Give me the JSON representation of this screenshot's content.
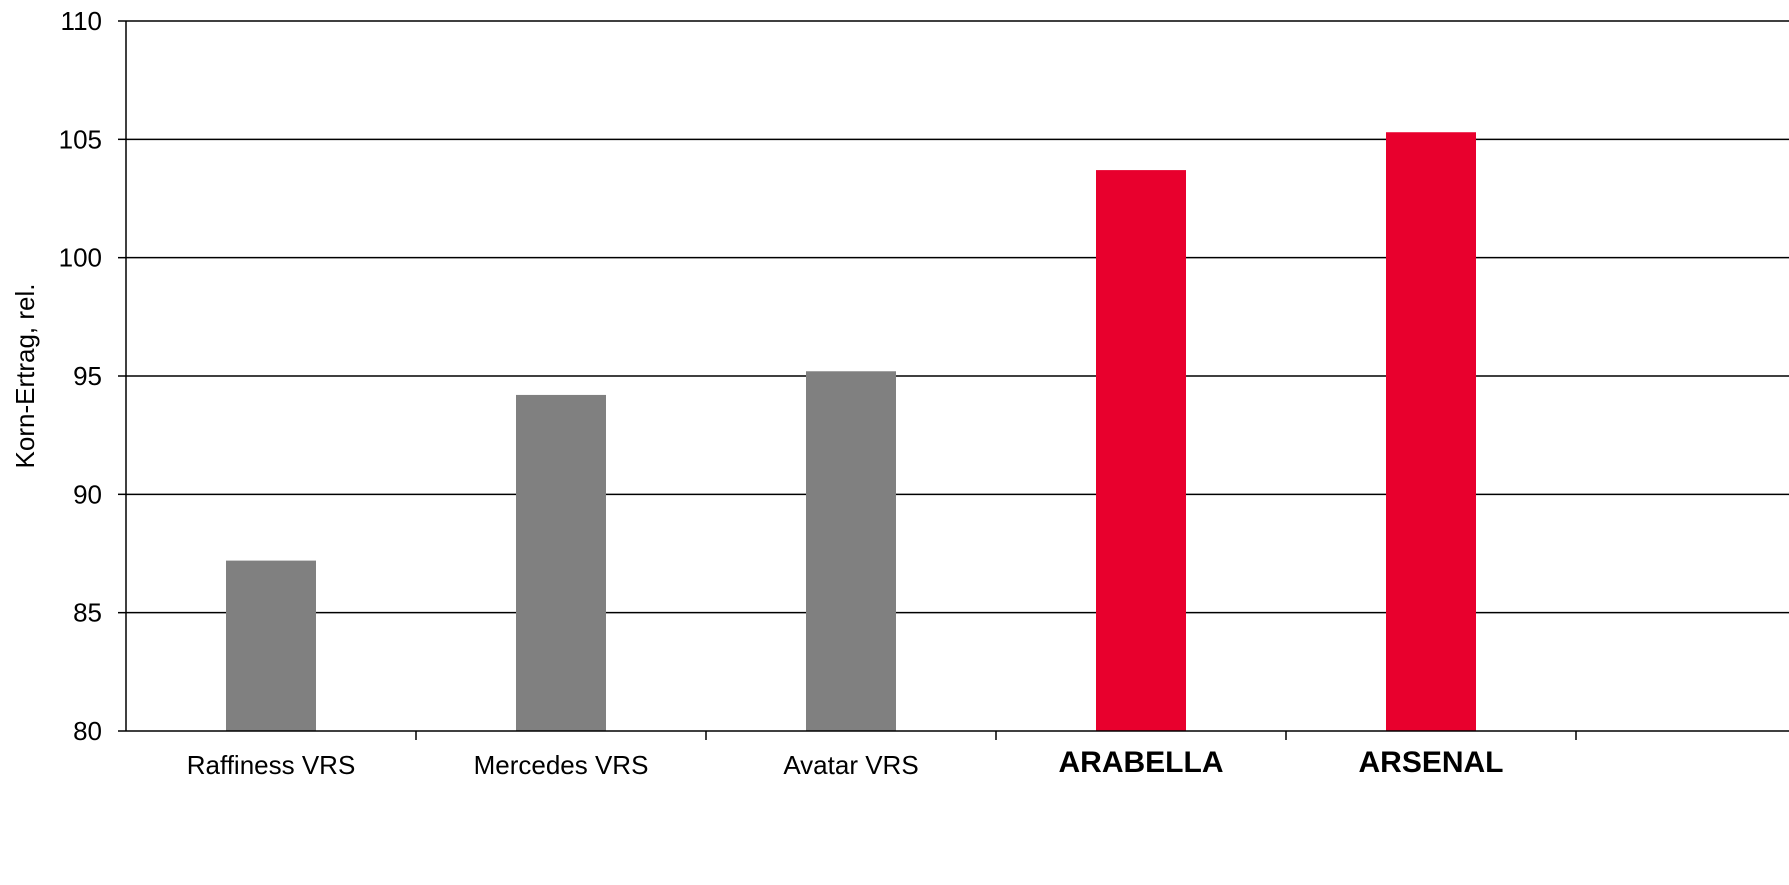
{
  "chart_data": {
    "type": "bar",
    "title": "",
    "xlabel": "",
    "ylabel": "Korn-Ertrag, rel.",
    "ylim": [
      80,
      110
    ],
    "yticks": [
      80,
      85,
      90,
      95,
      100,
      105,
      110
    ],
    "grid": true,
    "categories": [
      "Raffiness VRS",
      "Mercedes VRS",
      "Avatar VRS",
      "ARABELLA",
      "ARSENAL"
    ],
    "values": [
      87.2,
      94.2,
      95.2,
      103.7,
      105.3
    ],
    "highlighted": [
      false,
      false,
      false,
      true,
      true
    ],
    "colors": {
      "default_bar": "#808080",
      "highlight_bar": "#E8002D",
      "highlight_label": "#E8002D",
      "axis": "#000000",
      "grid": "#000000"
    }
  }
}
